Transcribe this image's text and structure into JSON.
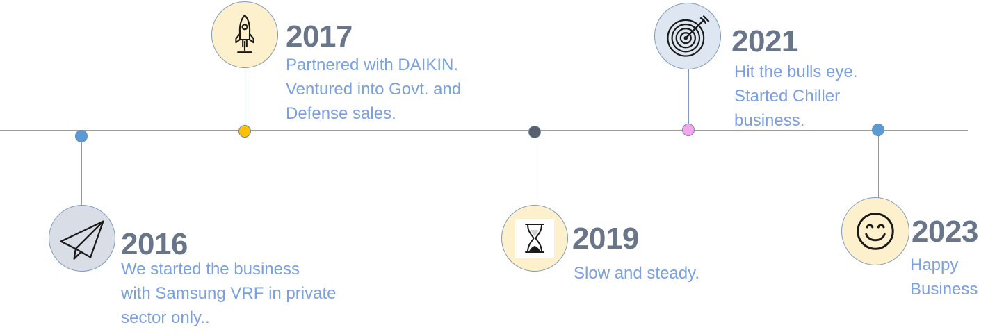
{
  "timeline": {
    "line_color": "#7fa3c6",
    "events": [
      {
        "year": "2016",
        "icon": "paper-plane-icon",
        "dot_color": "#5b9bd5",
        "circle_fill": "#d9dee6",
        "lines": [
          "We started the business",
          "with Samsung VRF in private",
          "sector only.."
        ]
      },
      {
        "year": "2017",
        "icon": "rocket-icon",
        "dot_color": "#ffc000",
        "circle_fill": "#fdf0cc",
        "lines": [
          "Partnered with DAIKIN.",
          "Ventured into Govt. and",
          "Defense sales."
        ]
      },
      {
        "year": "2019",
        "icon": "hourglass-icon",
        "dot_color": "#59606b",
        "circle_fill": "#fdf0cc",
        "lines": [
          "Slow and steady."
        ]
      },
      {
        "year": "2021",
        "icon": "target-icon",
        "dot_color": "#f4a6ec",
        "circle_fill": "#dde6f1",
        "lines": [
          "Hit the bulls eye.",
          "Started Chiller",
          "business."
        ]
      },
      {
        "year": "2023",
        "icon": "smiley-icon",
        "dot_color": "#5b9bd5",
        "circle_fill": "#fdf0cc",
        "lines": [
          "Happy",
          "Business"
        ]
      }
    ]
  }
}
